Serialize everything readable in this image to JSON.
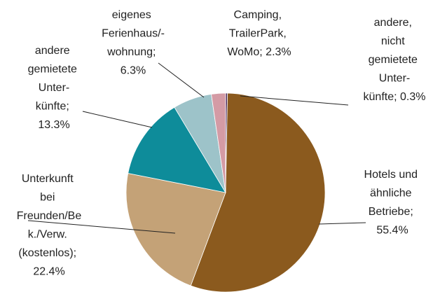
{
  "chart_data": {
    "type": "pie",
    "categories": [
      "andere, nicht gemietete Unter-künfte",
      "Hotels und ähnliche Betriebe",
      "Unterkunft bei Freunden/Bek./Verw. (kostenlos)",
      "andere gemietete Unter-künfte",
      "eigenes Ferienhaus/-wohnung",
      "Camping, TrailerPark, WoMo"
    ],
    "values": [
      0.3,
      55.4,
      22.4,
      13.3,
      6.3,
      2.3
    ],
    "value_labels": [
      "andere, nicht gemietete Unter-künfte; 0.3%",
      "Hotels und ähnliche Betriebe; 55.4%",
      "Unterkunft bei Freunden/Bek./Verw. (kostenlos); 22.4%",
      "andere gemietete Unter-künfte; 13.3%",
      "eigenes Ferienhaus/-wohnung; 6.3%",
      "Camping, TrailerPark, WoMo; 2.3%"
    ],
    "colors": [
      "#4b2a5a",
      "#8b5a1e",
      "#c4a277",
      "#0e8c9a",
      "#9dc3c9",
      "#d49ba5"
    ]
  }
}
